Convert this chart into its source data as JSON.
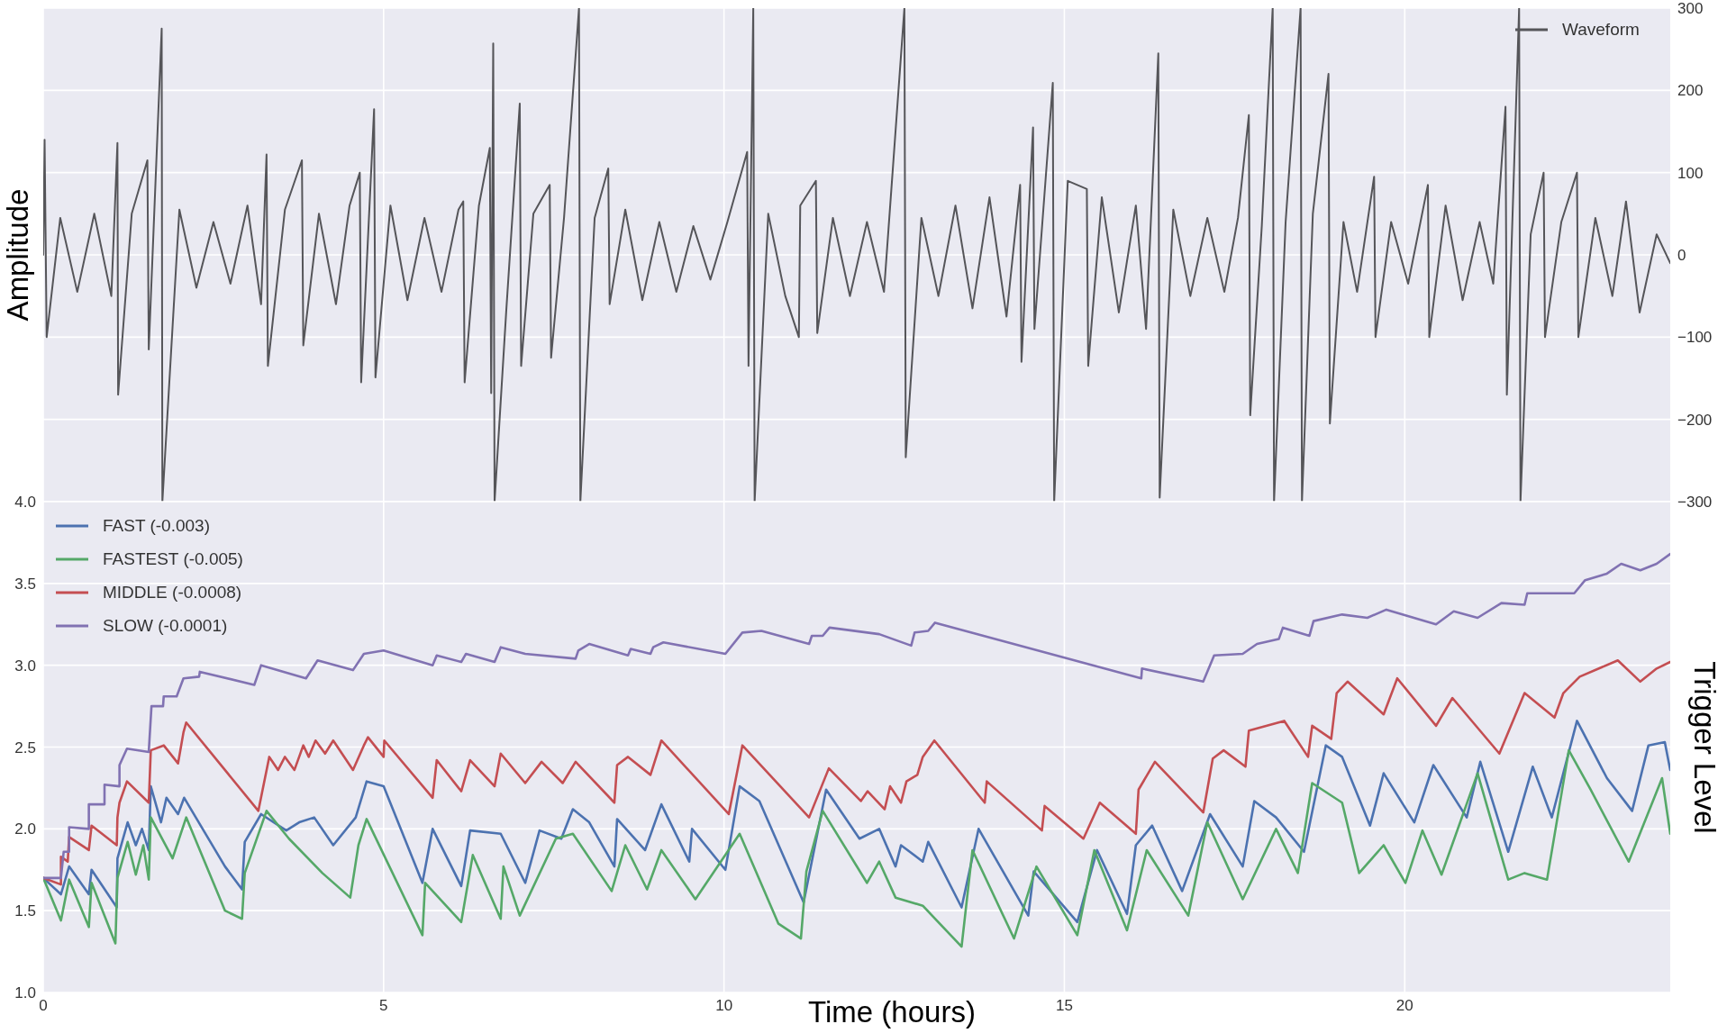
{
  "chart_data": [
    {
      "type": "line",
      "ylabel": "Amplitude",
      "xlim": [
        0,
        23.9
      ],
      "xticks": [
        0,
        5,
        10,
        15,
        20
      ],
      "ylim": [
        -300,
        300
      ],
      "yticks": [
        {
          "value": -300,
          "label": "−300"
        },
        {
          "value": -200,
          "label": "−200"
        },
        {
          "value": -100,
          "label": "−100"
        },
        0,
        100,
        200,
        300
      ],
      "tick_labels": "y",
      "grid": true,
      "legend": "top right",
      "series": [
        {
          "name": "Waveform",
          "color": "#555559",
          "x": [
            0,
            0.02,
            0.05,
            0.25,
            0.5,
            0.75,
            1.0,
            1.09,
            1.1,
            1.3,
            1.53,
            1.55,
            1.74,
            1.75,
            2.0,
            2.25,
            2.5,
            2.75,
            3.0,
            3.2,
            3.28,
            3.3,
            3.55,
            3.8,
            3.82,
            4.05,
            4.3,
            4.5,
            4.65,
            4.67,
            4.86,
            4.88,
            5.1,
            5.35,
            5.6,
            5.85,
            6.1,
            6.17,
            6.19,
            6.4,
            6.56,
            6.58,
            6.61,
            6.63,
            6.8,
            7.0,
            7.02,
            7.2,
            7.44,
            7.46,
            7.65,
            7.87,
            7.89,
            8.1,
            8.3,
            8.32,
            8.55,
            8.8,
            9.05,
            9.3,
            9.55,
            9.8,
            10.05,
            10.34,
            10.36,
            10.43,
            10.45,
            10.65,
            10.9,
            11.1,
            11.12,
            11.35,
            11.37,
            11.6,
            11.85,
            12.1,
            12.35,
            12.65,
            12.67,
            12.9,
            13.15,
            13.4,
            13.65,
            13.9,
            14.15,
            14.35,
            14.37,
            14.54,
            14.56,
            14.83,
            14.85,
            15.05,
            15.33,
            15.35,
            15.55,
            15.8,
            16.05,
            16.2,
            16.38,
            16.4,
            16.6,
            16.85,
            17.1,
            17.35,
            17.55,
            17.71,
            17.73,
            17.9,
            18.06,
            18.08,
            18.25,
            18.47,
            18.49,
            18.65,
            18.88,
            18.9,
            19.1,
            19.3,
            19.55,
            19.57,
            19.8,
            20.05,
            20.34,
            20.36,
            20.6,
            20.85,
            21.1,
            21.3,
            21.48,
            21.5,
            21.68,
            21.7,
            21.85,
            22.04,
            22.06,
            22.3,
            22.53,
            22.55,
            22.8,
            23.05,
            23.25,
            23.45,
            23.7,
            23.9
          ],
          "values": [
            0,
            140,
            -100,
            45,
            -45,
            50,
            -50,
            136,
            -170,
            50,
            115,
            -115,
            275,
            -300,
            55,
            -40,
            40,
            -35,
            60,
            -60,
            122,
            -135,
            55,
            115,
            -110,
            50,
            -60,
            60,
            100,
            -155,
            177,
            -149,
            60,
            -55,
            45,
            -45,
            55,
            65,
            -155,
            60,
            130,
            -168,
            257,
            -300,
            -70,
            184,
            -135,
            50,
            85,
            -125,
            45,
            300,
            -300,
            45,
            105,
            -60,
            55,
            -55,
            40,
            -45,
            35,
            -30,
            40,
            125,
            -135,
            300,
            -300,
            50,
            -50,
            -100,
            60,
            90,
            -95,
            45,
            -50,
            40,
            -45,
            300,
            -246,
            45,
            -50,
            60,
            -65,
            70,
            -75,
            85,
            -130,
            155,
            -90,
            209,
            -300,
            90,
            80,
            -135,
            70,
            -70,
            60,
            -90,
            245,
            -295,
            55,
            -50,
            45,
            -45,
            45,
            170,
            -195,
            35,
            300,
            -300,
            40,
            300,
            -300,
            50,
            220,
            -205,
            40,
            -45,
            95,
            -100,
            40,
            -35,
            85,
            -100,
            60,
            -55,
            40,
            -35,
            180,
            -170,
            300,
            -300,
            25,
            100,
            -100,
            40,
            100,
            -100,
            45,
            -50,
            65,
            -70,
            25,
            -10
          ]
        }
      ]
    },
    {
      "type": "line",
      "xlabel": "Time (hours)",
      "ylabel": "Trigger Level",
      "xlim": [
        0,
        23.9
      ],
      "xticks": [
        0,
        5,
        10,
        15,
        20
      ],
      "ylim": [
        1,
        4
      ],
      "yticks": [
        {
          "value": 1,
          "label": "1.0"
        },
        {
          "value": 1.5,
          "label": "1.5"
        },
        {
          "value": 2,
          "label": "2.0"
        },
        {
          "value": 2.5,
          "label": "2.5"
        },
        {
          "value": 3,
          "label": "3.0"
        },
        {
          "value": 3.5,
          "label": "3.5"
        },
        {
          "value": 4,
          "label": "4.0"
        }
      ],
      "grid": true,
      "legend": "top left",
      "series": [
        {
          "name": "FAST (-0.003)",
          "color": "#4c72b0",
          "x": [
            0,
            0.26,
            0.38,
            0.67,
            0.71,
            1.08,
            1.09,
            1.24,
            1.36,
            1.45,
            1.55,
            1.58,
            1.73,
            1.81,
            1.98,
            2.07,
            2.67,
            2.92,
            2.96,
            3.2,
            3.57,
            3.76,
            3.98,
            4.26,
            4.59,
            4.75,
            5.0,
            5.57,
            5.72,
            6.14,
            6.27,
            6.72,
            7.08,
            7.29,
            7.61,
            7.78,
            8.02,
            8.39,
            8.43,
            8.84,
            9.08,
            9.49,
            9.53,
            10.02,
            10.23,
            10.52,
            11.17,
            11.5,
            11.99,
            12.28,
            12.52,
            12.6,
            12.92,
            13.0,
            13.49,
            13.74,
            14.47,
            14.55,
            15.19,
            15.48,
            15.92,
            16.05,
            16.29,
            16.73,
            17.14,
            17.62,
            17.79,
            18.11,
            18.52,
            18.84,
            19.08,
            19.49,
            19.69,
            20.14,
            20.42,
            20.91,
            21.11,
            21.52,
            21.88,
            22.16,
            22.53,
            22.97,
            23.34,
            23.58,
            23.82,
            23.9
          ],
          "values": [
            1.7,
            1.6,
            1.77,
            1.6,
            1.75,
            1.52,
            1.82,
            2.04,
            1.9,
            2.0,
            1.87,
            2.26,
            2.04,
            2.19,
            2.09,
            2.19,
            1.77,
            1.63,
            1.92,
            2.09,
            1.99,
            2.04,
            2.07,
            1.9,
            2.07,
            2.29,
            2.26,
            1.67,
            2.0,
            1.65,
            1.99,
            1.97,
            1.67,
            1.99,
            1.94,
            2.12,
            2.04,
            1.77,
            2.06,
            1.87,
            2.15,
            1.8,
            2.0,
            1.75,
            2.26,
            2.17,
            1.55,
            2.24,
            1.94,
            2.0,
            1.77,
            1.9,
            1.8,
            1.92,
            1.52,
            2.0,
            1.47,
            1.74,
            1.43,
            1.87,
            1.48,
            1.9,
            2.02,
            1.62,
            2.09,
            1.77,
            2.17,
            2.07,
            1.86,
            2.51,
            2.44,
            2.02,
            2.34,
            2.04,
            2.39,
            2.07,
            2.41,
            1.86,
            2.38,
            2.07,
            2.66,
            2.31,
            2.11,
            2.51,
            2.53,
            2.36
          ]
        },
        {
          "name": "FASTEST (-0.005)",
          "color": "#55a868",
          "x": [
            0,
            0.26,
            0.38,
            0.67,
            0.71,
            1.06,
            1.09,
            1.24,
            1.36,
            1.47,
            1.55,
            1.58,
            1.9,
            2.1,
            2.67,
            2.92,
            2.96,
            3.28,
            3.61,
            4.1,
            4.51,
            4.63,
            4.75,
            5.57,
            5.61,
            6.14,
            6.31,
            6.72,
            6.76,
            7.0,
            7.53,
            7.78,
            8.35,
            8.55,
            8.87,
            9.08,
            9.58,
            10.23,
            10.8,
            11.13,
            11.21,
            11.45,
            12.1,
            12.28,
            12.52,
            12.92,
            13.49,
            13.65,
            14.26,
            14.59,
            15.19,
            15.44,
            15.92,
            16.21,
            16.82,
            17.1,
            17.62,
            18.11,
            18.43,
            18.64,
            19.08,
            19.33,
            19.69,
            20.01,
            20.26,
            20.54,
            21.07,
            21.52,
            21.76,
            22.09,
            22.41,
            22.73,
            23.29,
            23.78,
            23.9
          ],
          "values": [
            1.7,
            1.44,
            1.69,
            1.4,
            1.67,
            1.3,
            1.7,
            1.92,
            1.72,
            1.9,
            1.69,
            2.07,
            1.82,
            2.07,
            1.5,
            1.45,
            1.73,
            2.11,
            1.94,
            1.73,
            1.58,
            1.9,
            2.06,
            1.35,
            1.67,
            1.43,
            1.84,
            1.45,
            1.77,
            1.47,
            1.94,
            1.97,
            1.62,
            1.9,
            1.63,
            1.87,
            1.57,
            1.97,
            1.42,
            1.33,
            1.74,
            2.11,
            1.67,
            1.8,
            1.58,
            1.53,
            1.28,
            1.87,
            1.33,
            1.77,
            1.35,
            1.87,
            1.38,
            1.87,
            1.47,
            2.04,
            1.57,
            2.0,
            1.73,
            2.28,
            2.16,
            1.73,
            1.9,
            1.67,
            1.99,
            1.72,
            2.34,
            1.69,
            1.73,
            1.69,
            2.48,
            2.24,
            1.8,
            2.31,
            1.97
          ]
        },
        {
          "name": "MIDDLE (-0.0008)",
          "color": "#c44e52",
          "x": [
            0,
            0.26,
            0.26,
            0.36,
            0.38,
            0.67,
            0.71,
            1.08,
            1.09,
            1.12,
            1.23,
            1.55,
            1.58,
            1.77,
            1.98,
            2.06,
            2.1,
            3.16,
            3.32,
            3.45,
            3.55,
            3.69,
            3.82,
            3.9,
            4.0,
            4.14,
            4.26,
            4.55,
            4.71,
            4.77,
            5.0,
            5.01,
            5.72,
            5.78,
            6.14,
            6.27,
            6.63,
            6.72,
            7.08,
            7.32,
            7.63,
            7.82,
            8.39,
            8.43,
            8.59,
            8.92,
            9.08,
            10.07,
            10.27,
            11.25,
            11.54,
            12.01,
            12.11,
            12.36,
            12.44,
            12.6,
            12.68,
            12.84,
            12.92,
            13.09,
            13.83,
            13.86,
            14.67,
            14.71,
            15.28,
            15.52,
            16.05,
            16.09,
            16.33,
            17.04,
            17.18,
            17.34,
            17.66,
            17.71,
            18.23,
            18.58,
            18.64,
            18.92,
            19.0,
            19.16,
            19.69,
            19.89,
            20.46,
            20.7,
            21.39,
            21.76,
            22.2,
            22.33,
            22.57,
            23.13,
            23.46,
            23.7,
            23.9
          ],
          "values": [
            1.7,
            1.66,
            1.83,
            1.8,
            1.95,
            1.87,
            2.02,
            1.9,
            2.07,
            2.16,
            2.29,
            2.16,
            2.48,
            2.51,
            2.4,
            2.59,
            2.65,
            2.11,
            2.44,
            2.36,
            2.44,
            2.36,
            2.51,
            2.44,
            2.54,
            2.46,
            2.54,
            2.36,
            2.51,
            2.56,
            2.44,
            2.54,
            2.19,
            2.42,
            2.23,
            2.42,
            2.26,
            2.46,
            2.28,
            2.41,
            2.28,
            2.41,
            2.16,
            2.39,
            2.44,
            2.33,
            2.54,
            2.09,
            2.51,
            2.07,
            2.37,
            2.17,
            2.23,
            2.12,
            2.26,
            2.16,
            2.29,
            2.33,
            2.44,
            2.54,
            2.16,
            2.29,
            1.99,
            2.14,
            1.94,
            2.16,
            1.97,
            2.24,
            2.41,
            2.1,
            2.43,
            2.48,
            2.38,
            2.6,
            2.66,
            2.44,
            2.63,
            2.55,
            2.83,
            2.9,
            2.7,
            2.92,
            2.63,
            2.8,
            2.46,
            2.83,
            2.68,
            2.83,
            2.93,
            3.03,
            2.9,
            2.98,
            3.02
          ]
        },
        {
          "name": "SLOW (-0.0001)",
          "color": "#8172b2",
          "x": [
            0,
            0.26,
            0.3,
            0.38,
            0.38,
            0.67,
            0.67,
            0.9,
            0.9,
            1.12,
            1.12,
            1.23,
            1.55,
            1.59,
            1.76,
            1.77,
            1.96,
            2.06,
            2.29,
            2.3,
            3.1,
            3.2,
            3.86,
            4.03,
            4.55,
            4.71,
            5.0,
            5.72,
            5.78,
            6.14,
            6.21,
            6.63,
            6.72,
            7.08,
            7.82,
            7.86,
            8.02,
            8.59,
            8.63,
            8.92,
            8.96,
            9.11,
            10.02,
            10.27,
            10.55,
            11.25,
            11.29,
            11.45,
            11.55,
            12.28,
            12.75,
            12.8,
            13.0,
            13.1,
            16.13,
            16.14,
            17.04,
            17.2,
            17.62,
            17.83,
            18.15,
            18.21,
            18.6,
            18.66,
            19.08,
            19.45,
            19.73,
            20.46,
            20.72,
            21.07,
            21.42,
            21.76,
            21.8,
            22.49,
            22.65,
            22.97,
            23.18,
            23.46,
            23.7,
            23.9
          ],
          "values": [
            1.7,
            1.7,
            1.86,
            1.86,
            2.01,
            2.0,
            2.15,
            2.15,
            2.27,
            2.26,
            2.39,
            2.49,
            2.47,
            2.75,
            2.75,
            2.81,
            2.81,
            2.92,
            2.93,
            2.96,
            2.88,
            3.0,
            2.92,
            3.03,
            2.97,
            3.07,
            3.09,
            3.0,
            3.06,
            3.02,
            3.07,
            3.02,
            3.11,
            3.07,
            3.04,
            3.09,
            3.13,
            3.06,
            3.1,
            3.07,
            3.11,
            3.14,
            3.07,
            3.2,
            3.21,
            3.13,
            3.18,
            3.18,
            3.23,
            3.19,
            3.12,
            3.2,
            3.21,
            3.26,
            2.92,
            2.98,
            2.9,
            3.06,
            3.07,
            3.13,
            3.16,
            3.23,
            3.18,
            3.27,
            3.31,
            3.29,
            3.34,
            3.25,
            3.33,
            3.29,
            3.38,
            3.37,
            3.44,
            3.44,
            3.52,
            3.56,
            3.62,
            3.58,
            3.62,
            3.68
          ]
        }
      ]
    }
  ]
}
